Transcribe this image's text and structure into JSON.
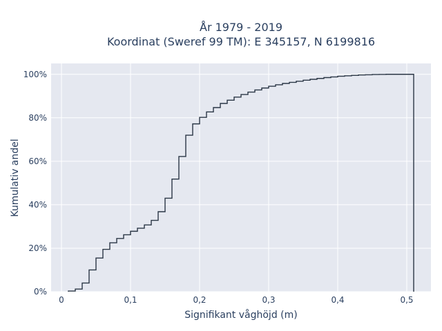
{
  "chart_data": {
    "type": "line",
    "line_shape": "step",
    "title_line1": "År 1979 - 2019",
    "title_line2": "Koordinat (Sweref 99 TM): E 345157, N 6199816",
    "xlabel": "Signifikant våghöjd (m)",
    "ylabel": "Kumulativ andel",
    "xlim": [
      -0.015,
      0.535
    ],
    "ylim": [
      0,
      1.05
    ],
    "x_ticks": [
      0,
      0.1,
      0.2,
      0.3,
      0.4,
      0.5
    ],
    "x_tick_labels": [
      "0",
      "0,1",
      "0,2",
      "0,3",
      "0,4",
      "0,5"
    ],
    "y_ticks": [
      0,
      0.2,
      0.4,
      0.6,
      0.8,
      1.0
    ],
    "y_tick_labels": [
      "0%",
      "20%",
      "40%",
      "60%",
      "80%",
      "100%"
    ],
    "grid": true,
    "plot_bgcolor": "#e5e8f0",
    "line_color": "#2a3645",
    "series": [
      {
        "x": [
          0.01,
          0.02,
          0.03,
          0.04,
          0.05,
          0.06,
          0.07,
          0.08,
          0.09,
          0.1,
          0.11,
          0.12,
          0.13,
          0.14,
          0.15,
          0.16,
          0.17,
          0.18,
          0.19,
          0.2,
          0.21,
          0.22,
          0.23,
          0.24,
          0.25,
          0.26,
          0.27,
          0.28,
          0.29,
          0.3,
          0.31,
          0.32,
          0.33,
          0.34,
          0.35,
          0.36,
          0.37,
          0.38,
          0.39,
          0.4,
          0.41,
          0.42,
          0.43,
          0.44,
          0.45,
          0.46,
          0.47,
          0.48,
          0.49,
          0.5,
          0.51
        ],
        "y": [
          0.003,
          0.012,
          0.04,
          0.1,
          0.155,
          0.195,
          0.225,
          0.245,
          0.262,
          0.278,
          0.292,
          0.307,
          0.328,
          0.368,
          0.43,
          0.518,
          0.622,
          0.72,
          0.772,
          0.802,
          0.827,
          0.847,
          0.866,
          0.881,
          0.895,
          0.907,
          0.918,
          0.928,
          0.937,
          0.945,
          0.952,
          0.958,
          0.963,
          0.968,
          0.973,
          0.977,
          0.981,
          0.985,
          0.988,
          0.991,
          0.993,
          0.995,
          0.997,
          0.998,
          0.999,
          0.9995,
          1.0,
          1.0,
          1.0,
          1.0,
          1.0
        ]
      }
    ]
  }
}
